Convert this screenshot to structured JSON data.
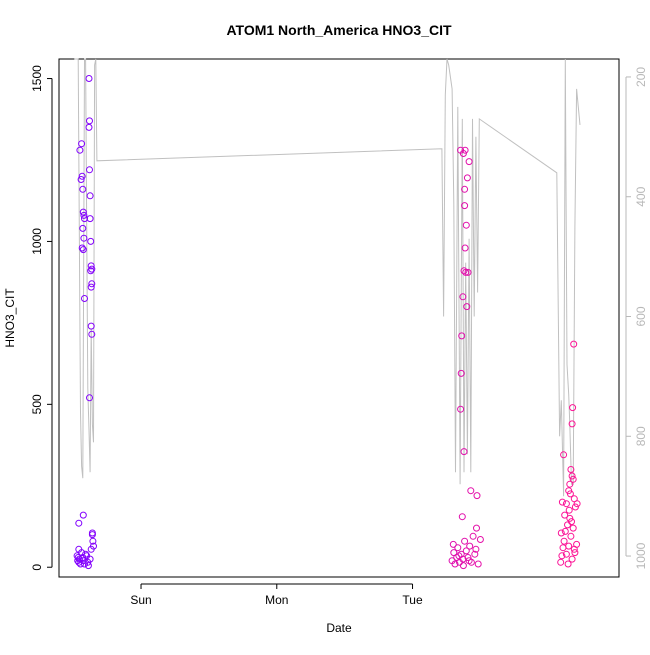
{
  "chart_data": {
    "type": "scatter",
    "title": "ATOM1 North_America HNO3_CIT",
    "xlabel": "Date",
    "ylabel": "HNO3_CIT",
    "x_ticks": [
      "Sun",
      "Mon",
      "Tue"
    ],
    "y_ticks": [
      0,
      500,
      1000,
      1500
    ],
    "ylim": [
      -30,
      1560
    ],
    "xlim_hours": [
      -14.5,
      84.5
    ],
    "y2_ticks": [
      200,
      400,
      600,
      800,
      1000
    ],
    "y2lim": [
      1035,
      170
    ],
    "grid": false,
    "legend": "none",
    "point_colors": [
      "#7f00ff",
      "#ff1493"
    ],
    "secondary_line_color": "#c0c0c0",
    "series": [
      {
        "values": [
          [
            -11.2,
            20
          ],
          [
            -11.0,
            15
          ],
          [
            -10.8,
            1280
          ],
          [
            -10.6,
            1190
          ],
          [
            -10.5,
            1300
          ],
          [
            -10.4,
            1200
          ],
          [
            -10.3,
            1160
          ],
          [
            -10.4,
            980
          ],
          [
            -10.2,
            1090
          ],
          [
            -10.1,
            1080
          ],
          [
            -10.3,
            1040
          ],
          [
            -10.0,
            1070
          ],
          [
            -10.1,
            1010
          ],
          [
            -10.2,
            975
          ],
          [
            -10.0,
            825
          ],
          [
            -9.2,
            1500
          ],
          [
            -9.1,
            1370
          ],
          [
            -9.2,
            1350
          ],
          [
            -9.1,
            1220
          ],
          [
            -9.0,
            1140
          ],
          [
            -9.0,
            1070
          ],
          [
            -8.9,
            1000
          ],
          [
            -8.8,
            925
          ],
          [
            -8.7,
            915
          ],
          [
            -8.9,
            910
          ],
          [
            -8.7,
            870
          ],
          [
            -8.8,
            860
          ],
          [
            -8.8,
            740
          ],
          [
            -8.7,
            715
          ],
          [
            -9.1,
            520
          ],
          [
            -11.0,
            135
          ],
          [
            -10.2,
            160
          ],
          [
            -8.6,
            100
          ],
          [
            -8.5,
            80
          ],
          [
            -8.4,
            65
          ],
          [
            -11.3,
            35
          ],
          [
            -11.1,
            30
          ],
          [
            -11.0,
            55
          ],
          [
            -10.9,
            25
          ],
          [
            -10.7,
            10
          ],
          [
            -10.5,
            45
          ],
          [
            -10.3,
            30
          ],
          [
            -10.2,
            20
          ],
          [
            -10.0,
            10
          ],
          [
            -9.8,
            40
          ],
          [
            -9.6,
            35
          ],
          [
            -9.4,
            15
          ],
          [
            -9.3,
            5
          ],
          [
            -9.0,
            25
          ],
          [
            -8.8,
            55
          ],
          [
            -8.6,
            105
          ]
        ]
      },
      {
        "values": [
          [
            56.5,
            1280
          ],
          [
            57.0,
            1270
          ],
          [
            57.3,
            1280
          ],
          [
            58.0,
            1245
          ],
          [
            57.7,
            1195
          ],
          [
            57.2,
            1160
          ],
          [
            57.2,
            1110
          ],
          [
            57.5,
            1050
          ],
          [
            57.3,
            980
          ],
          [
            57.1,
            910
          ],
          [
            57.4,
            905
          ],
          [
            57.8,
            905
          ],
          [
            56.9,
            830
          ],
          [
            57.6,
            800
          ],
          [
            56.7,
            710
          ],
          [
            56.6,
            595
          ],
          [
            56.5,
            485
          ],
          [
            57.1,
            355
          ],
          [
            58.3,
            235
          ],
          [
            59.4,
            220
          ],
          [
            56.8,
            155
          ],
          [
            55.0,
            20
          ],
          [
            55.3,
            45
          ],
          [
            55.5,
            10
          ],
          [
            55.8,
            30
          ],
          [
            56.0,
            60
          ],
          [
            56.3,
            15
          ],
          [
            56.6,
            40
          ],
          [
            56.9,
            25
          ],
          [
            57.2,
            80
          ],
          [
            57.5,
            50
          ],
          [
            57.8,
            30
          ],
          [
            58.1,
            65
          ],
          [
            58.4,
            15
          ],
          [
            58.7,
            95
          ],
          [
            59.0,
            40
          ],
          [
            59.3,
            120
          ],
          [
            59.6,
            10
          ],
          [
            60.0,
            85
          ],
          [
            55.2,
            70
          ],
          [
            56.2,
            35
          ],
          [
            57.0,
            5
          ],
          [
            58.0,
            20
          ],
          [
            59.2,
            55
          ]
        ]
      },
      {
        "values": [
          [
            76.5,
            685
          ],
          [
            76.3,
            490
          ],
          [
            76.2,
            440
          ],
          [
            74.7,
            345
          ],
          [
            76.0,
            300
          ],
          [
            76.2,
            280
          ],
          [
            75.8,
            255
          ],
          [
            76.4,
            270
          ],
          [
            75.6,
            235
          ],
          [
            75.9,
            225
          ],
          [
            76.6,
            210
          ],
          [
            74.5,
            200
          ],
          [
            75.2,
            195
          ],
          [
            75.7,
            175
          ],
          [
            74.2,
            15
          ],
          [
            74.4,
            35
          ],
          [
            74.6,
            60
          ],
          [
            74.8,
            80
          ],
          [
            75.0,
            110
          ],
          [
            75.2,
            40
          ],
          [
            75.4,
            130
          ],
          [
            75.6,
            65
          ],
          [
            75.8,
            150
          ],
          [
            76.0,
            95
          ],
          [
            76.2,
            25
          ],
          [
            76.4,
            120
          ],
          [
            76.6,
            55
          ],
          [
            76.8,
            185
          ],
          [
            77.0,
            70
          ],
          [
            74.3,
            105
          ],
          [
            74.9,
            160
          ],
          [
            75.5,
            10
          ],
          [
            76.1,
            140
          ],
          [
            76.7,
            45
          ],
          [
            77.1,
            195
          ]
        ]
      }
    ],
    "secondary_line": {
      "values": [
        [
          -11.8,
          170
        ],
        [
          -11.1,
          170
        ],
        [
          -10.9,
          480
        ],
        [
          -10.7,
          760
        ],
        [
          -10.5,
          850
        ],
        [
          -10.3,
          870
        ],
        [
          -10.0,
          170
        ],
        [
          -9.8,
          170
        ],
        [
          -9.6,
          450
        ],
        [
          -9.4,
          720
        ],
        [
          -9.2,
          790
        ],
        [
          -9.0,
          860
        ],
        [
          -8.8,
          620
        ],
        [
          -8.6,
          780
        ],
        [
          -8.4,
          810
        ],
        [
          -8.2,
          180
        ],
        [
          -8.0,
          170
        ],
        [
          -7.8,
          340
        ],
        [
          53.2,
          320
        ],
        [
          53.5,
          600
        ],
        [
          53.8,
          230
        ],
        [
          54.1,
          170
        ],
        [
          54.4,
          180
        ],
        [
          54.7,
          200
        ],
        [
          55.0,
          220
        ],
        [
          55.3,
          410
        ],
        [
          55.6,
          860
        ],
        [
          56.0,
          250
        ],
        [
          56.4,
          880
        ],
        [
          56.8,
          270
        ],
        [
          57.1,
          860
        ],
        [
          57.4,
          510
        ],
        [
          57.7,
          830
        ],
        [
          58.0,
          470
        ],
        [
          58.3,
          860
        ],
        [
          58.6,
          270
        ],
        [
          58.9,
          600
        ],
        [
          59.2,
          300
        ],
        [
          59.5,
          560
        ],
        [
          59.8,
          270
        ],
        [
          73.5,
          360
        ],
        [
          74.0,
          800
        ],
        [
          74.3,
          740
        ],
        [
          74.7,
          900
        ],
        [
          75.0,
          170
        ],
        [
          75.3,
          680
        ],
        [
          75.6,
          730
        ],
        [
          75.8,
          780
        ],
        [
          76.1,
          880
        ],
        [
          76.4,
          880
        ],
        [
          76.7,
          450
        ],
        [
          77.0,
          220
        ],
        [
          77.3,
          250
        ],
        [
          77.6,
          280
        ]
      ]
    }
  }
}
